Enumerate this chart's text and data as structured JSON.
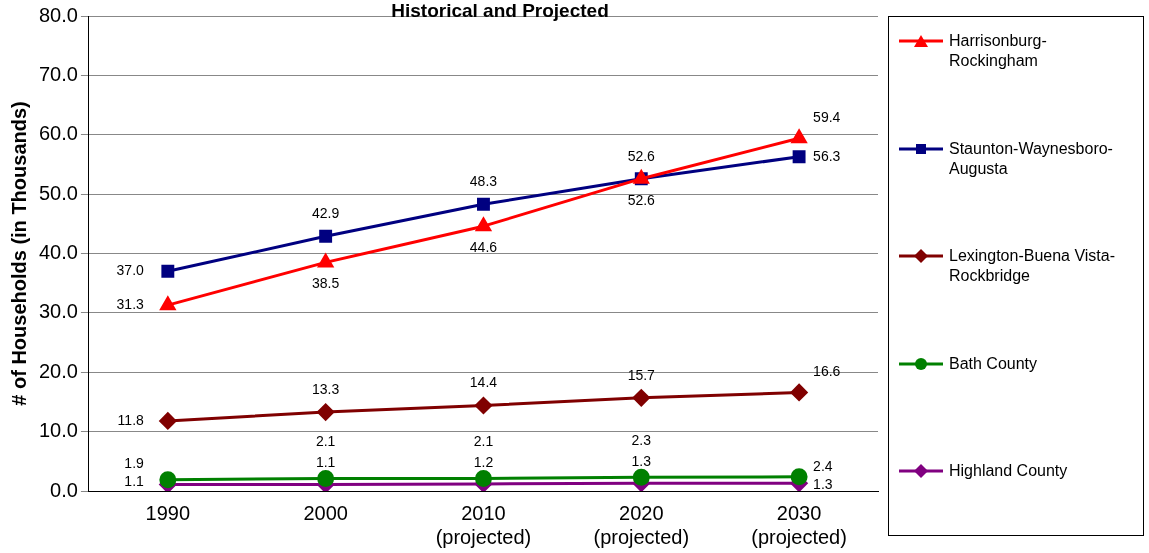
{
  "chart_data": {
    "type": "line",
    "title": "Historical and Projected",
    "ylabel": "# of Households (in Thousands)",
    "categories": [
      "1990",
      "2000",
      "2010\n(projected)",
      "2020\n(projected)",
      "2030\n(projected)"
    ],
    "ylim": [
      0,
      80
    ],
    "yticks": [
      {
        "value": 0,
        "label": "0.0"
      },
      {
        "value": 10,
        "label": "10.0"
      },
      {
        "value": 20,
        "label": "20.0"
      },
      {
        "value": 30,
        "label": "30.0"
      },
      {
        "value": 40,
        "label": "40.0"
      },
      {
        "value": 50,
        "label": "50.0"
      },
      {
        "value": 60,
        "label": "60.0"
      },
      {
        "value": 70,
        "label": "70.0"
      },
      {
        "value": 80,
        "label": "80.0"
      }
    ],
    "grid": "y",
    "legend": "right",
    "line_style": "solid",
    "series": [
      {
        "name": "Harrisonburg-Rockingham",
        "color": "#ff0000",
        "marker": "triangle",
        "values": [
          31.3,
          38.5,
          44.6,
          52.6,
          59.4
        ],
        "value_labels": [
          "31.3",
          "38.5",
          "44.6",
          "52.6",
          "59.4"
        ]
      },
      {
        "name": "Staunton-Waynesboro-Augusta",
        "color": "#000080",
        "marker": "square",
        "values": [
          37.0,
          42.9,
          48.3,
          52.6,
          56.3
        ],
        "value_labels": [
          "37.0",
          "42.9",
          "48.3",
          "52.6",
          "56.3"
        ]
      },
      {
        "name": "Lexington-Buena Vista-Rockbridge",
        "color": "#800000",
        "marker": "diamond",
        "values": [
          11.8,
          13.3,
          14.4,
          15.7,
          16.6
        ],
        "value_labels": [
          "11.8",
          "13.3",
          "14.4",
          "15.7",
          "16.6"
        ]
      },
      {
        "name": "Bath County",
        "color": "#008000",
        "marker": "circle",
        "values": [
          1.9,
          2.1,
          2.1,
          2.3,
          2.4
        ],
        "value_labels": [
          "1.9",
          "2.1",
          "2.1",
          "2.3",
          "2.4"
        ]
      },
      {
        "name": "Highland County",
        "color": "#800080",
        "marker": "diamond",
        "values": [
          1.1,
          1.1,
          1.2,
          1.3,
          1.3
        ],
        "value_labels": [
          "1.1",
          "1.1",
          "1.2",
          "1.3",
          "1.3"
        ]
      }
    ]
  }
}
